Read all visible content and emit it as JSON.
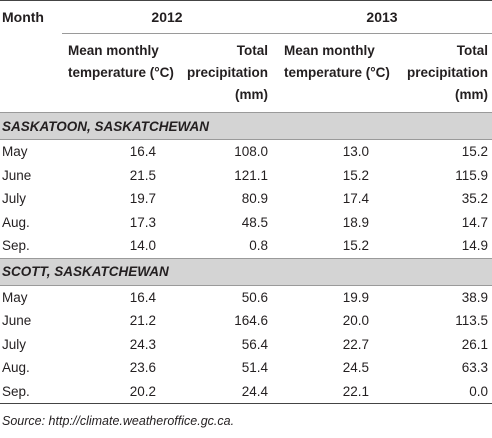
{
  "table": {
    "month_header": "Month",
    "years": [
      "2012",
      "2013"
    ],
    "col_mean": "Mean monthly temperature (°C)",
    "col_mean_l1": "Mean monthly",
    "col_mean_l2": "temperature (°C)",
    "col_prec_l1": "Total",
    "col_prec_l2": "precipitation",
    "col_prec_l3": "(mm)",
    "regions": [
      {
        "name": "SASKATOON, SASKATCHEWAN",
        "rows": [
          {
            "month": "May",
            "t2012": "16.4",
            "p2012": "108.0",
            "t2013": "13.0",
            "p2013": "15.2"
          },
          {
            "month": "June",
            "t2012": "21.5",
            "p2012": "121.1",
            "t2013": "15.2",
            "p2013": "115.9"
          },
          {
            "month": "July",
            "t2012": "19.7",
            "p2012": "80.9",
            "t2013": "17.4",
            "p2013": "35.2"
          },
          {
            "month": "Aug.",
            "t2012": "17.3",
            "p2012": "48.5",
            "t2013": "18.9",
            "p2013": "14.7"
          },
          {
            "month": "Sep.",
            "t2012": "14.0",
            "p2012": "0.8",
            "t2013": "15.2",
            "p2013": "14.9"
          }
        ]
      },
      {
        "name": "SCOTT, SASKATCHEWAN",
        "rows": [
          {
            "month": "May",
            "t2012": "16.4",
            "p2012": "50.6",
            "t2013": "19.9",
            "p2013": "38.9"
          },
          {
            "month": "June",
            "t2012": "21.2",
            "p2012": "164.6",
            "t2013": "20.0",
            "p2013": "113.5"
          },
          {
            "month": "July",
            "t2012": "24.3",
            "p2012": "56.4",
            "t2013": "22.7",
            "p2013": "26.1"
          },
          {
            "month": "Aug.",
            "t2012": "23.6",
            "p2012": "51.4",
            "t2013": "24.5",
            "p2013": "63.3"
          },
          {
            "month": "Sep.",
            "t2012": "20.2",
            "p2012": "24.4",
            "t2013": "22.1",
            "p2013": "0.0"
          }
        ]
      }
    ]
  },
  "source": "Source: http://climate.weatheroffice.gc.ca."
}
